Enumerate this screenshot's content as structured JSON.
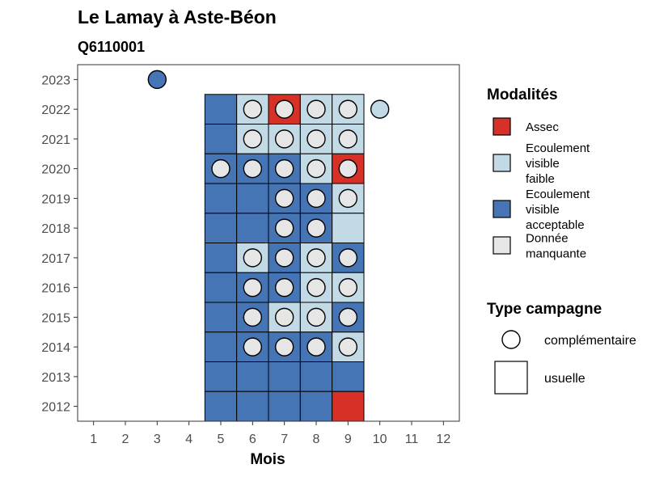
{
  "chart_data": {
    "type": "heatmap",
    "title": "Le Lamay à Aste-Béon",
    "subtitle": "Q6110001",
    "xlabel": "Mois",
    "ylabel": "",
    "x_ticks": [
      1,
      2,
      3,
      4,
      5,
      6,
      7,
      8,
      9,
      10,
      11,
      12
    ],
    "y_ticks": [
      2012,
      2013,
      2014,
      2015,
      2016,
      2017,
      2018,
      2019,
      2020,
      2021,
      2022,
      2023
    ],
    "xlim": [
      0.5,
      12.5
    ],
    "ylim": [
      2011.5,
      2023.5
    ],
    "colors": {
      "assec": "#d73027",
      "faible": "#c2d9e6",
      "acceptable": "#4575b4",
      "manquante": "#e6e6e6",
      "outline": "#000000"
    },
    "legend_modalites": {
      "title": "Modalités",
      "items": [
        {
          "key": "assec",
          "label_lines": [
            "Assec"
          ]
        },
        {
          "key": "faible",
          "label_lines": [
            "Ecoulement",
            "visible",
            "faible"
          ]
        },
        {
          "key": "acceptable",
          "label_lines": [
            "Ecoulement",
            "visible",
            "acceptable"
          ]
        },
        {
          "key": "manquante",
          "label_lines": [
            "Donnée",
            "manquante"
          ]
        }
      ]
    },
    "legend_type": {
      "title": "Type campagne",
      "items": [
        {
          "shape": "circle",
          "label": "complémentaire"
        },
        {
          "shape": "square",
          "label": "usuelle"
        }
      ]
    },
    "tiles": [
      {
        "year": 2022,
        "month": 5,
        "value": "acceptable"
      },
      {
        "year": 2022,
        "month": 6,
        "value": "faible"
      },
      {
        "year": 2022,
        "month": 7,
        "value": "assec"
      },
      {
        "year": 2022,
        "month": 8,
        "value": "faible"
      },
      {
        "year": 2022,
        "month": 9,
        "value": "faible"
      },
      {
        "year": 2021,
        "month": 5,
        "value": "acceptable"
      },
      {
        "year": 2021,
        "month": 6,
        "value": "faible"
      },
      {
        "year": 2021,
        "month": 7,
        "value": "faible"
      },
      {
        "year": 2021,
        "month": 8,
        "value": "faible"
      },
      {
        "year": 2021,
        "month": 9,
        "value": "faible"
      },
      {
        "year": 2020,
        "month": 5,
        "value": "acceptable"
      },
      {
        "year": 2020,
        "month": 6,
        "value": "acceptable"
      },
      {
        "year": 2020,
        "month": 7,
        "value": "acceptable"
      },
      {
        "year": 2020,
        "month": 8,
        "value": "faible"
      },
      {
        "year": 2020,
        "month": 9,
        "value": "assec"
      },
      {
        "year": 2019,
        "month": 5,
        "value": "acceptable"
      },
      {
        "year": 2019,
        "month": 6,
        "value": "acceptable"
      },
      {
        "year": 2019,
        "month": 7,
        "value": "acceptable"
      },
      {
        "year": 2019,
        "month": 8,
        "value": "acceptable"
      },
      {
        "year": 2019,
        "month": 9,
        "value": "faible"
      },
      {
        "year": 2018,
        "month": 5,
        "value": "acceptable"
      },
      {
        "year": 2018,
        "month": 6,
        "value": "acceptable"
      },
      {
        "year": 2018,
        "month": 7,
        "value": "acceptable"
      },
      {
        "year": 2018,
        "month": 8,
        "value": "acceptable"
      },
      {
        "year": 2018,
        "month": 9,
        "value": "faible"
      },
      {
        "year": 2017,
        "month": 5,
        "value": "acceptable"
      },
      {
        "year": 2017,
        "month": 6,
        "value": "faible"
      },
      {
        "year": 2017,
        "month": 7,
        "value": "acceptable"
      },
      {
        "year": 2017,
        "month": 8,
        "value": "faible"
      },
      {
        "year": 2017,
        "month": 9,
        "value": "acceptable"
      },
      {
        "year": 2016,
        "month": 5,
        "value": "acceptable"
      },
      {
        "year": 2016,
        "month": 6,
        "value": "acceptable"
      },
      {
        "year": 2016,
        "month": 7,
        "value": "acceptable"
      },
      {
        "year": 2016,
        "month": 8,
        "value": "faible"
      },
      {
        "year": 2016,
        "month": 9,
        "value": "faible"
      },
      {
        "year": 2015,
        "month": 5,
        "value": "acceptable"
      },
      {
        "year": 2015,
        "month": 6,
        "value": "acceptable"
      },
      {
        "year": 2015,
        "month": 7,
        "value": "faible"
      },
      {
        "year": 2015,
        "month": 8,
        "value": "faible"
      },
      {
        "year": 2015,
        "month": 9,
        "value": "acceptable"
      },
      {
        "year": 2014,
        "month": 5,
        "value": "acceptable"
      },
      {
        "year": 2014,
        "month": 6,
        "value": "acceptable"
      },
      {
        "year": 2014,
        "month": 7,
        "value": "acceptable"
      },
      {
        "year": 2014,
        "month": 8,
        "value": "acceptable"
      },
      {
        "year": 2014,
        "month": 9,
        "value": "faible"
      },
      {
        "year": 2013,
        "month": 5,
        "value": "acceptable"
      },
      {
        "year": 2013,
        "month": 6,
        "value": "acceptable"
      },
      {
        "year": 2013,
        "month": 7,
        "value": "acceptable"
      },
      {
        "year": 2013,
        "month": 8,
        "value": "acceptable"
      },
      {
        "year": 2013,
        "month": 9,
        "value": "acceptable"
      },
      {
        "year": 2012,
        "month": 5,
        "value": "acceptable"
      },
      {
        "year": 2012,
        "month": 6,
        "value": "acceptable"
      },
      {
        "year": 2012,
        "month": 7,
        "value": "acceptable"
      },
      {
        "year": 2012,
        "month": 8,
        "value": "acceptable"
      },
      {
        "year": 2012,
        "month": 9,
        "value": "assec"
      }
    ],
    "points": [
      {
        "year": 2023,
        "month": 3,
        "value": "acceptable"
      },
      {
        "year": 2022,
        "month": 6,
        "value": "manquante"
      },
      {
        "year": 2022,
        "month": 7,
        "value": "manquante"
      },
      {
        "year": 2022,
        "month": 8,
        "value": "manquante"
      },
      {
        "year": 2022,
        "month": 9,
        "value": "manquante"
      },
      {
        "year": 2022,
        "month": 10,
        "value": "faible"
      },
      {
        "year": 2021,
        "month": 6,
        "value": "manquante"
      },
      {
        "year": 2021,
        "month": 7,
        "value": "manquante"
      },
      {
        "year": 2021,
        "month": 8,
        "value": "manquante"
      },
      {
        "year": 2021,
        "month": 9,
        "value": "manquante"
      },
      {
        "year": 2020,
        "month": 5,
        "value": "manquante"
      },
      {
        "year": 2020,
        "month": 6,
        "value": "manquante"
      },
      {
        "year": 2020,
        "month": 7,
        "value": "manquante"
      },
      {
        "year": 2020,
        "month": 8,
        "value": "manquante"
      },
      {
        "year": 2020,
        "month": 9,
        "value": "manquante"
      },
      {
        "year": 2019,
        "month": 7,
        "value": "manquante"
      },
      {
        "year": 2019,
        "month": 8,
        "value": "manquante"
      },
      {
        "year": 2019,
        "month": 9,
        "value": "manquante"
      },
      {
        "year": 2018,
        "month": 7,
        "value": "manquante"
      },
      {
        "year": 2018,
        "month": 8,
        "value": "manquante"
      },
      {
        "year": 2017,
        "month": 6,
        "value": "manquante"
      },
      {
        "year": 2017,
        "month": 7,
        "value": "manquante"
      },
      {
        "year": 2017,
        "month": 8,
        "value": "manquante"
      },
      {
        "year": 2017,
        "month": 9,
        "value": "manquante"
      },
      {
        "year": 2016,
        "month": 6,
        "value": "manquante"
      },
      {
        "year": 2016,
        "month": 7,
        "value": "manquante"
      },
      {
        "year": 2016,
        "month": 8,
        "value": "manquante"
      },
      {
        "year": 2016,
        "month": 9,
        "value": "manquante"
      },
      {
        "year": 2015,
        "month": 6,
        "value": "manquante"
      },
      {
        "year": 2015,
        "month": 7,
        "value": "manquante"
      },
      {
        "year": 2015,
        "month": 8,
        "value": "manquante"
      },
      {
        "year": 2015,
        "month": 9,
        "value": "manquante"
      },
      {
        "year": 2014,
        "month": 6,
        "value": "manquante"
      },
      {
        "year": 2014,
        "month": 7,
        "value": "manquante"
      },
      {
        "year": 2014,
        "month": 8,
        "value": "manquante"
      },
      {
        "year": 2014,
        "month": 9,
        "value": "manquante"
      }
    ]
  }
}
